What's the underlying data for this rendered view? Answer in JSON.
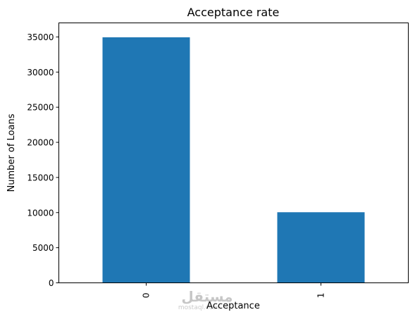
{
  "chart_data": {
    "type": "bar",
    "title": "Acceptance rate",
    "xlabel": "Acceptance",
    "ylabel": "Number of Loans",
    "categories": [
      "0",
      "1"
    ],
    "values": [
      34950,
      10050
    ],
    "ylim": [
      0,
      37000
    ],
    "yticks": [
      0,
      5000,
      10000,
      15000,
      20000,
      25000,
      30000,
      35000
    ],
    "ytick_labels": [
      "0",
      "5000",
      "10000",
      "15000",
      "20000",
      "25000",
      "30000",
      "35000"
    ],
    "grid": false,
    "legend": "none",
    "bar_color": "#1f77b4"
  },
  "watermark": {
    "logo_text": "مستقل",
    "sub_text": "mostaql.com"
  }
}
